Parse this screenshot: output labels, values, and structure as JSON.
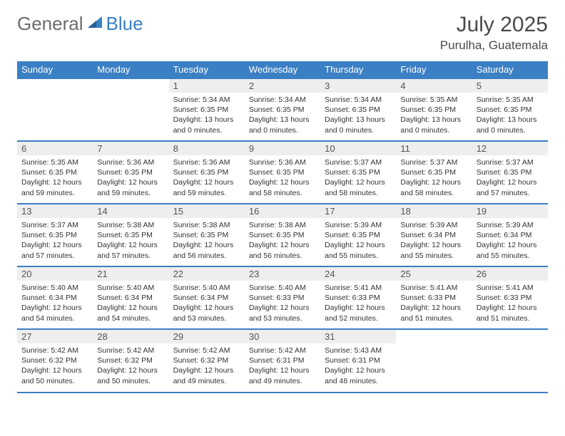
{
  "logo": {
    "part1": "General",
    "part2": "Blue"
  },
  "title": "July 2025",
  "location": "Purulha, Guatemala",
  "colors": {
    "accent": "#3b7fc4",
    "header_text": "#ffffff",
    "daynum_bg": "#eeeeee",
    "text": "#333333",
    "title_text": "#4a4a4a",
    "logo_gray": "#6c6c6c"
  },
  "weekdays": [
    "Sunday",
    "Monday",
    "Tuesday",
    "Wednesday",
    "Thursday",
    "Friday",
    "Saturday"
  ],
  "weeks": [
    [
      null,
      null,
      {
        "n": "1",
        "sr": "Sunrise: 5:34 AM",
        "ss": "Sunset: 6:35 PM",
        "dl1": "Daylight: 13 hours",
        "dl2": "and 0 minutes."
      },
      {
        "n": "2",
        "sr": "Sunrise: 5:34 AM",
        "ss": "Sunset: 6:35 PM",
        "dl1": "Daylight: 13 hours",
        "dl2": "and 0 minutes."
      },
      {
        "n": "3",
        "sr": "Sunrise: 5:34 AM",
        "ss": "Sunset: 6:35 PM",
        "dl1": "Daylight: 13 hours",
        "dl2": "and 0 minutes."
      },
      {
        "n": "4",
        "sr": "Sunrise: 5:35 AM",
        "ss": "Sunset: 6:35 PM",
        "dl1": "Daylight: 13 hours",
        "dl2": "and 0 minutes."
      },
      {
        "n": "5",
        "sr": "Sunrise: 5:35 AM",
        "ss": "Sunset: 6:35 PM",
        "dl1": "Daylight: 13 hours",
        "dl2": "and 0 minutes."
      }
    ],
    [
      {
        "n": "6",
        "sr": "Sunrise: 5:35 AM",
        "ss": "Sunset: 6:35 PM",
        "dl1": "Daylight: 12 hours",
        "dl2": "and 59 minutes."
      },
      {
        "n": "7",
        "sr": "Sunrise: 5:36 AM",
        "ss": "Sunset: 6:35 PM",
        "dl1": "Daylight: 12 hours",
        "dl2": "and 59 minutes."
      },
      {
        "n": "8",
        "sr": "Sunrise: 5:36 AM",
        "ss": "Sunset: 6:35 PM",
        "dl1": "Daylight: 12 hours",
        "dl2": "and 59 minutes."
      },
      {
        "n": "9",
        "sr": "Sunrise: 5:36 AM",
        "ss": "Sunset: 6:35 PM",
        "dl1": "Daylight: 12 hours",
        "dl2": "and 58 minutes."
      },
      {
        "n": "10",
        "sr": "Sunrise: 5:37 AM",
        "ss": "Sunset: 6:35 PM",
        "dl1": "Daylight: 12 hours",
        "dl2": "and 58 minutes."
      },
      {
        "n": "11",
        "sr": "Sunrise: 5:37 AM",
        "ss": "Sunset: 6:35 PM",
        "dl1": "Daylight: 12 hours",
        "dl2": "and 58 minutes."
      },
      {
        "n": "12",
        "sr": "Sunrise: 5:37 AM",
        "ss": "Sunset: 6:35 PM",
        "dl1": "Daylight: 12 hours",
        "dl2": "and 57 minutes."
      }
    ],
    [
      {
        "n": "13",
        "sr": "Sunrise: 5:37 AM",
        "ss": "Sunset: 6:35 PM",
        "dl1": "Daylight: 12 hours",
        "dl2": "and 57 minutes."
      },
      {
        "n": "14",
        "sr": "Sunrise: 5:38 AM",
        "ss": "Sunset: 6:35 PM",
        "dl1": "Daylight: 12 hours",
        "dl2": "and 57 minutes."
      },
      {
        "n": "15",
        "sr": "Sunrise: 5:38 AM",
        "ss": "Sunset: 6:35 PM",
        "dl1": "Daylight: 12 hours",
        "dl2": "and 56 minutes."
      },
      {
        "n": "16",
        "sr": "Sunrise: 5:38 AM",
        "ss": "Sunset: 6:35 PM",
        "dl1": "Daylight: 12 hours",
        "dl2": "and 56 minutes."
      },
      {
        "n": "17",
        "sr": "Sunrise: 5:39 AM",
        "ss": "Sunset: 6:35 PM",
        "dl1": "Daylight: 12 hours",
        "dl2": "and 55 minutes."
      },
      {
        "n": "18",
        "sr": "Sunrise: 5:39 AM",
        "ss": "Sunset: 6:34 PM",
        "dl1": "Daylight: 12 hours",
        "dl2": "and 55 minutes."
      },
      {
        "n": "19",
        "sr": "Sunrise: 5:39 AM",
        "ss": "Sunset: 6:34 PM",
        "dl1": "Daylight: 12 hours",
        "dl2": "and 55 minutes."
      }
    ],
    [
      {
        "n": "20",
        "sr": "Sunrise: 5:40 AM",
        "ss": "Sunset: 6:34 PM",
        "dl1": "Daylight: 12 hours",
        "dl2": "and 54 minutes."
      },
      {
        "n": "21",
        "sr": "Sunrise: 5:40 AM",
        "ss": "Sunset: 6:34 PM",
        "dl1": "Daylight: 12 hours",
        "dl2": "and 54 minutes."
      },
      {
        "n": "22",
        "sr": "Sunrise: 5:40 AM",
        "ss": "Sunset: 6:34 PM",
        "dl1": "Daylight: 12 hours",
        "dl2": "and 53 minutes."
      },
      {
        "n": "23",
        "sr": "Sunrise: 5:40 AM",
        "ss": "Sunset: 6:33 PM",
        "dl1": "Daylight: 12 hours",
        "dl2": "and 53 minutes."
      },
      {
        "n": "24",
        "sr": "Sunrise: 5:41 AM",
        "ss": "Sunset: 6:33 PM",
        "dl1": "Daylight: 12 hours",
        "dl2": "and 52 minutes."
      },
      {
        "n": "25",
        "sr": "Sunrise: 5:41 AM",
        "ss": "Sunset: 6:33 PM",
        "dl1": "Daylight: 12 hours",
        "dl2": "and 51 minutes."
      },
      {
        "n": "26",
        "sr": "Sunrise: 5:41 AM",
        "ss": "Sunset: 6:33 PM",
        "dl1": "Daylight: 12 hours",
        "dl2": "and 51 minutes."
      }
    ],
    [
      {
        "n": "27",
        "sr": "Sunrise: 5:42 AM",
        "ss": "Sunset: 6:32 PM",
        "dl1": "Daylight: 12 hours",
        "dl2": "and 50 minutes."
      },
      {
        "n": "28",
        "sr": "Sunrise: 5:42 AM",
        "ss": "Sunset: 6:32 PM",
        "dl1": "Daylight: 12 hours",
        "dl2": "and 50 minutes."
      },
      {
        "n": "29",
        "sr": "Sunrise: 5:42 AM",
        "ss": "Sunset: 6:32 PM",
        "dl1": "Daylight: 12 hours",
        "dl2": "and 49 minutes."
      },
      {
        "n": "30",
        "sr": "Sunrise: 5:42 AM",
        "ss": "Sunset: 6:31 PM",
        "dl1": "Daylight: 12 hours",
        "dl2": "and 49 minutes."
      },
      {
        "n": "31",
        "sr": "Sunrise: 5:43 AM",
        "ss": "Sunset: 6:31 PM",
        "dl1": "Daylight: 12 hours",
        "dl2": "and 48 minutes."
      },
      null,
      null
    ]
  ]
}
